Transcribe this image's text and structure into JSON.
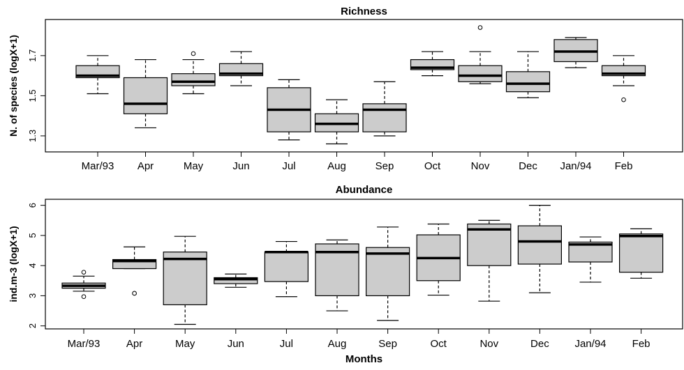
{
  "chart_data": [
    {
      "type": "boxplot",
      "title": "Richness",
      "ylabel": "N. of species (logX+1)",
      "xlabel": "",
      "ylim": [
        1.22,
        1.88
      ],
      "yticks": [
        1.3,
        1.5,
        1.7
      ],
      "ytick_labels": [
        "1.3",
        "1.5",
        "1.7"
      ],
      "categories": [
        "Mar/93",
        "Apr",
        "May",
        "Jun",
        "Jul",
        "Aug",
        "Sep",
        "Oct",
        "Nov",
        "Dec",
        "Jan/94",
        "Feb"
      ],
      "boxes": [
        {
          "whisker_low": 1.51,
          "q1": 1.59,
          "median": 1.6,
          "q3": 1.65,
          "whisker_high": 1.7,
          "outliers": []
        },
        {
          "whisker_low": 1.34,
          "q1": 1.41,
          "median": 1.46,
          "q3": 1.59,
          "whisker_high": 1.68,
          "outliers": []
        },
        {
          "whisker_low": 1.51,
          "q1": 1.55,
          "median": 1.57,
          "q3": 1.61,
          "whisker_high": 1.68,
          "outliers": [
            1.71
          ]
        },
        {
          "whisker_low": 1.55,
          "q1": 1.6,
          "median": 1.61,
          "q3": 1.66,
          "whisker_high": 1.72,
          "outliers": []
        },
        {
          "whisker_low": 1.28,
          "q1": 1.32,
          "median": 1.43,
          "q3": 1.54,
          "whisker_high": 1.58,
          "outliers": []
        },
        {
          "whisker_low": 1.26,
          "q1": 1.32,
          "median": 1.36,
          "q3": 1.41,
          "whisker_high": 1.48,
          "outliers": []
        },
        {
          "whisker_low": 1.3,
          "q1": 1.32,
          "median": 1.43,
          "q3": 1.46,
          "whisker_high": 1.57,
          "outliers": []
        },
        {
          "whisker_low": 1.6,
          "q1": 1.63,
          "median": 1.64,
          "q3": 1.68,
          "whisker_high": 1.72,
          "outliers": []
        },
        {
          "whisker_low": 1.56,
          "q1": 1.57,
          "median": 1.6,
          "q3": 1.65,
          "whisker_high": 1.72,
          "outliers": [
            1.84
          ]
        },
        {
          "whisker_low": 1.49,
          "q1": 1.52,
          "median": 1.56,
          "q3": 1.62,
          "whisker_high": 1.72,
          "outliers": []
        },
        {
          "whisker_low": 1.64,
          "q1": 1.67,
          "median": 1.72,
          "q3": 1.78,
          "whisker_high": 1.79,
          "outliers": []
        },
        {
          "whisker_low": 1.55,
          "q1": 1.6,
          "median": 1.61,
          "q3": 1.65,
          "whisker_high": 1.7,
          "outliers": [
            1.48
          ]
        }
      ]
    },
    {
      "type": "boxplot",
      "title": "Abundance",
      "ylabel": "ind.m-3 (logX+1)",
      "xlabel": "Months",
      "ylim": [
        1.9,
        6.2
      ],
      "yticks": [
        2,
        3,
        4,
        5,
        6
      ],
      "ytick_labels": [
        "2",
        "3",
        "4",
        "5",
        "6"
      ],
      "categories": [
        "Mar/93",
        "Apr",
        "May",
        "Jun",
        "Jul",
        "Aug",
        "Sep",
        "Oct",
        "Nov",
        "Dec",
        "Jan/94",
        "Feb"
      ],
      "boxes": [
        {
          "whisker_low": 3.15,
          "q1": 3.25,
          "median": 3.33,
          "q3": 3.42,
          "whisker_high": 3.65,
          "outliers": [
            2.97,
            3.78
          ]
        },
        {
          "whisker_low": 3.9,
          "q1": 3.9,
          "median": 4.15,
          "q3": 4.2,
          "whisker_high": 4.62,
          "outliers": [
            3.08,
            3.08
          ]
        },
        {
          "whisker_low": 2.05,
          "q1": 2.7,
          "median": 4.22,
          "q3": 4.45,
          "whisker_high": 4.97,
          "outliers": []
        },
        {
          "whisker_low": 3.28,
          "q1": 3.4,
          "median": 3.55,
          "q3": 3.6,
          "whisker_high": 3.72,
          "outliers": []
        },
        {
          "whisker_low": 2.97,
          "q1": 3.47,
          "median": 4.45,
          "q3": 4.45,
          "whisker_high": 4.8,
          "outliers": []
        },
        {
          "whisker_low": 2.5,
          "q1": 3.0,
          "median": 4.45,
          "q3": 4.72,
          "whisker_high": 4.85,
          "outliers": []
        },
        {
          "whisker_low": 2.18,
          "q1": 3.0,
          "median": 4.4,
          "q3": 4.6,
          "whisker_high": 5.28,
          "outliers": []
        },
        {
          "whisker_low": 3.02,
          "q1": 3.5,
          "median": 4.25,
          "q3": 5.02,
          "whisker_high": 5.38,
          "outliers": []
        },
        {
          "whisker_low": 2.82,
          "q1": 4.0,
          "median": 5.2,
          "q3": 5.38,
          "whisker_high": 5.5,
          "outliers": []
        },
        {
          "whisker_low": 3.1,
          "q1": 4.05,
          "median": 4.8,
          "q3": 5.32,
          "whisker_high": 6.0,
          "outliers": []
        },
        {
          "whisker_low": 3.45,
          "q1": 4.12,
          "median": 4.7,
          "q3": 4.78,
          "whisker_high": 4.95,
          "outliers": []
        },
        {
          "whisker_low": 3.58,
          "q1": 3.78,
          "median": 4.98,
          "q3": 5.05,
          "whisker_high": 5.22,
          "outliers": []
        }
      ]
    }
  ],
  "colors": {
    "box_fill": "#cccccc",
    "line": "#000000",
    "background": "#ffffff"
  }
}
